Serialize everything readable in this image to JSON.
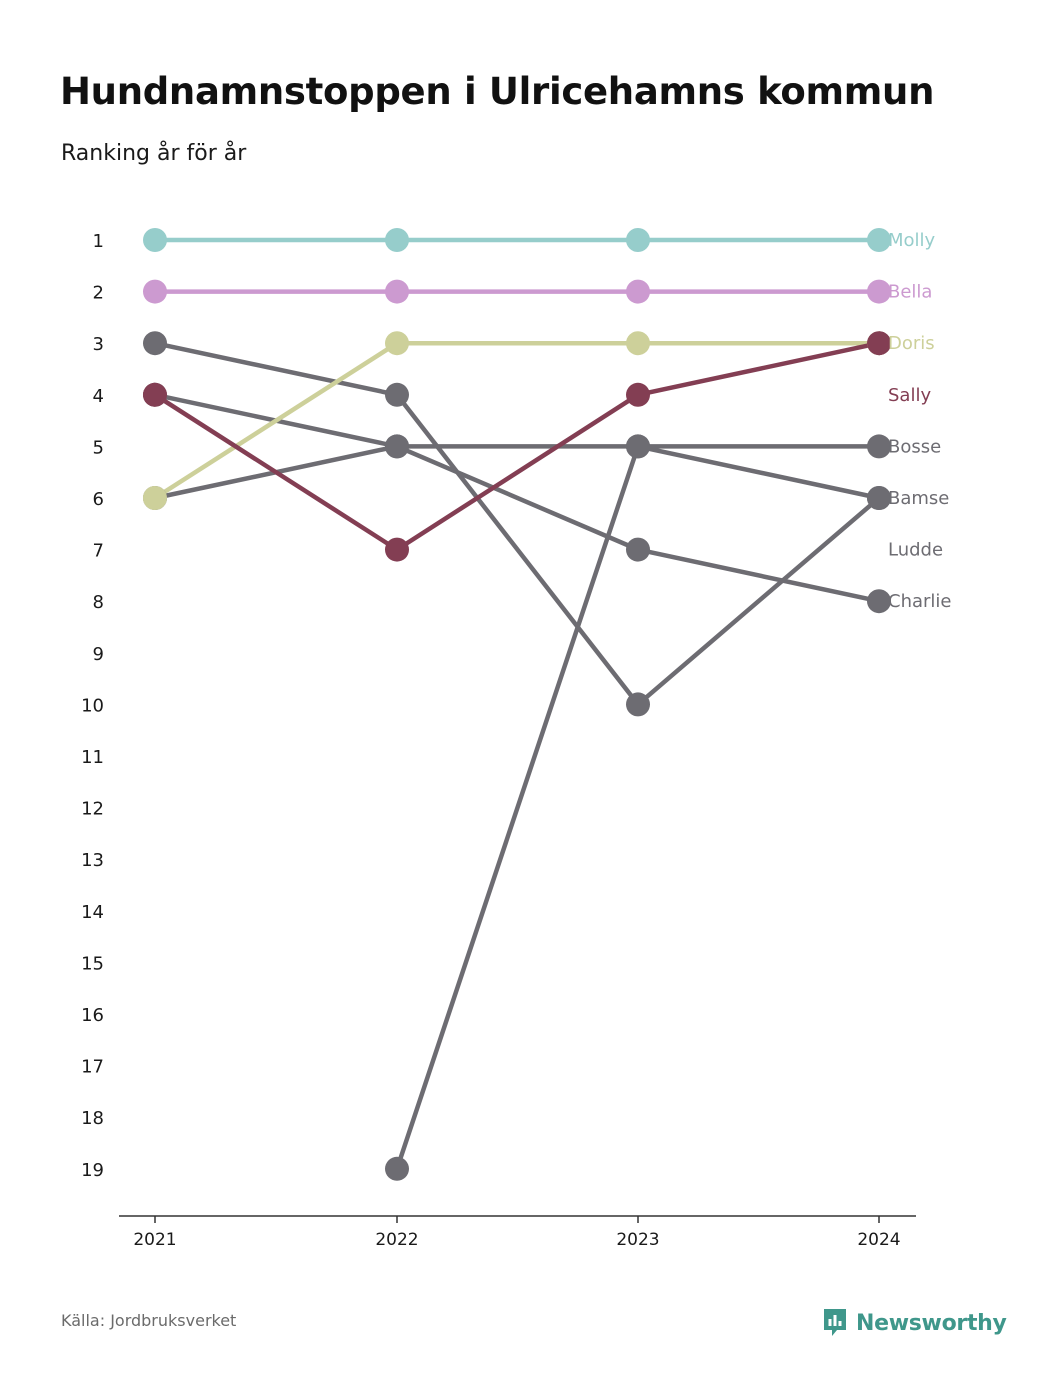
{
  "header": {
    "title": "Hundnamnstoppen i Ulricehamns kommun",
    "subtitle": "Ranking år för år"
  },
  "footer": {
    "source": "Källa: Jordbruksverket",
    "brand": "Newsworthy",
    "brand_icon": "bar-chart-icon",
    "brand_color": "#3f978b"
  },
  "chart_data": {
    "type": "line",
    "title": "Hundnamnstoppen i Ulricehamns kommun",
    "subtitle": "Ranking år för år",
    "x": [
      "2021",
      "2022",
      "2023",
      "2024"
    ],
    "ylim": [
      1,
      19
    ],
    "y_reversed": true,
    "y_ticks": [
      "1",
      "2",
      "3",
      "4",
      "5",
      "6",
      "7",
      "8",
      "9",
      "10",
      "11",
      "12",
      "13",
      "14",
      "15",
      "16",
      "17",
      "18",
      "19"
    ],
    "grid": false,
    "legend": "direct labels at right end",
    "series": [
      {
        "name": "Molly",
        "color": "#96cdcb",
        "values": [
          1,
          1,
          1,
          1
        ]
      },
      {
        "name": "Bella",
        "color": "#cc9ad0",
        "values": [
          2,
          2,
          2,
          2
        ]
      },
      {
        "name": "Doris",
        "color": "#cdd09a",
        "values": [
          6,
          3,
          3,
          3
        ]
      },
      {
        "name": "Sally",
        "color": "#833e53",
        "values": [
          4,
          7,
          4,
          3
        ]
      },
      {
        "name": "Bosse",
        "color": "#6d6c72",
        "values": [
          6,
          5,
          5,
          5
        ]
      },
      {
        "name": "Bamse",
        "color": "#6d6c72",
        "values": [
          3,
          4,
          10,
          6
        ]
      },
      {
        "name": "Ludde",
        "color": "#6d6c72",
        "values": [
          null,
          19,
          5,
          6
        ]
      },
      {
        "name": "Charlie",
        "color": "#6d6c72",
        "values": [
          4,
          5,
          7,
          8
        ]
      }
    ]
  }
}
